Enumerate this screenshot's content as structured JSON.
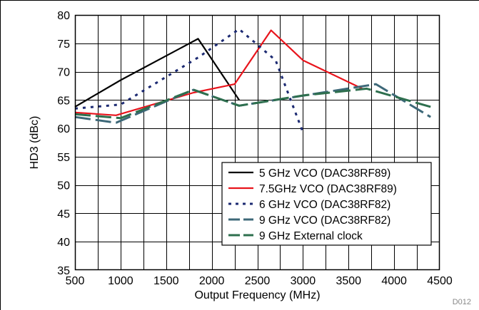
{
  "chart_data": {
    "type": "line",
    "title": "",
    "xlabel": "Output Frequency (MHz)",
    "ylabel": "HD3 (dBc)",
    "xlim": [
      500,
      4500
    ],
    "ylim": [
      35,
      80
    ],
    "x_ticks": [
      500,
      1000,
      1500,
      2000,
      2500,
      3000,
      3500,
      4000,
      4500
    ],
    "y_ticks": [
      35,
      40,
      45,
      50,
      55,
      60,
      65,
      70,
      75,
      80
    ],
    "x_minor_step": 250,
    "grid": true,
    "legend_position": "bottom-right",
    "footnote": "D012",
    "series": [
      {
        "name": "5 GHz VCO (DAC38RF89)",
        "color": "#000000",
        "style": "solid",
        "x": [
          500,
          1000,
          1850,
          2300
        ],
        "y": [
          63.8,
          68.5,
          75.8,
          65.0
        ]
      },
      {
        "name": "7.5GHz VCO (DAC38RF89)",
        "color": "#e8141c",
        "style": "solid",
        "x": [
          500,
          950,
          1800,
          2250,
          2650,
          3000,
          3650
        ],
        "y": [
          62.8,
          62.3,
          66.3,
          67.8,
          77.3,
          72.0,
          67.0
        ]
      },
      {
        "name": "6 GHz VCO (DAC38RF82)",
        "color": "#1c2a72",
        "style": "dotted",
        "x": [
          500,
          1000,
          1850,
          2300,
          2700,
          3000
        ],
        "y": [
          63.5,
          64.2,
          72.5,
          77.5,
          72.0,
          59.3
        ]
      },
      {
        "name": "9 GHz VCO (DAC38RF82)",
        "color": "#3d6878",
        "style": "dashed",
        "x": [
          500,
          950,
          1800,
          2300,
          3800,
          4400
        ],
        "y": [
          62.0,
          61.0,
          66.8,
          64.0,
          67.8,
          62.0
        ]
      },
      {
        "name": "9 GHz External clock",
        "color": "#2e6f4e",
        "style": "dashed",
        "x": [
          500,
          1000,
          1800,
          2300,
          3000,
          3700,
          4400
        ],
        "y": [
          62.5,
          61.8,
          66.8,
          64.0,
          65.8,
          67.0,
          63.8
        ]
      }
    ]
  }
}
